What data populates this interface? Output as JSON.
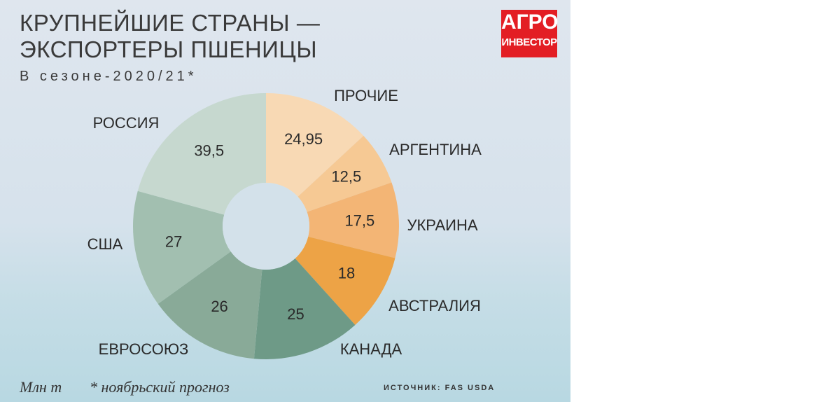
{
  "chart_data": {
    "type": "donut",
    "title": "КРУПНЕЙШИЕ СТРАНЫ — ЭКСПОРТЕРЫ ПШЕНИЦЫ",
    "subtitle": "В сезоне-2020/21*",
    "categories": [
      "ПРОЧИЕ",
      "АРГЕНТИНА",
      "УКРАИНА",
      "АВСТРАЛИЯ",
      "КАНАДА",
      "ЕВРОСОЮЗ",
      "США",
      "РОССИЯ"
    ],
    "values": [
      24.95,
      12.5,
      17.5,
      18,
      25,
      26,
      27,
      39.5
    ],
    "value_labels": [
      "24,95",
      "12,5",
      "17,5",
      "18",
      "25",
      "26",
      "27",
      "39,5"
    ],
    "colors": [
      "#f8d9b4",
      "#f6c994",
      "#f3b575",
      "#eda346",
      "#6e9a87",
      "#89aa98",
      "#a2bfb0",
      "#c6d8cf"
    ],
    "unit": "Млн т",
    "note": "* ноябрьский прогноз",
    "source": "ИСТОЧНИК: FAS USDA",
    "logo_top": "АГРО",
    "logo_bottom": "ИНВЕСТОР"
  }
}
